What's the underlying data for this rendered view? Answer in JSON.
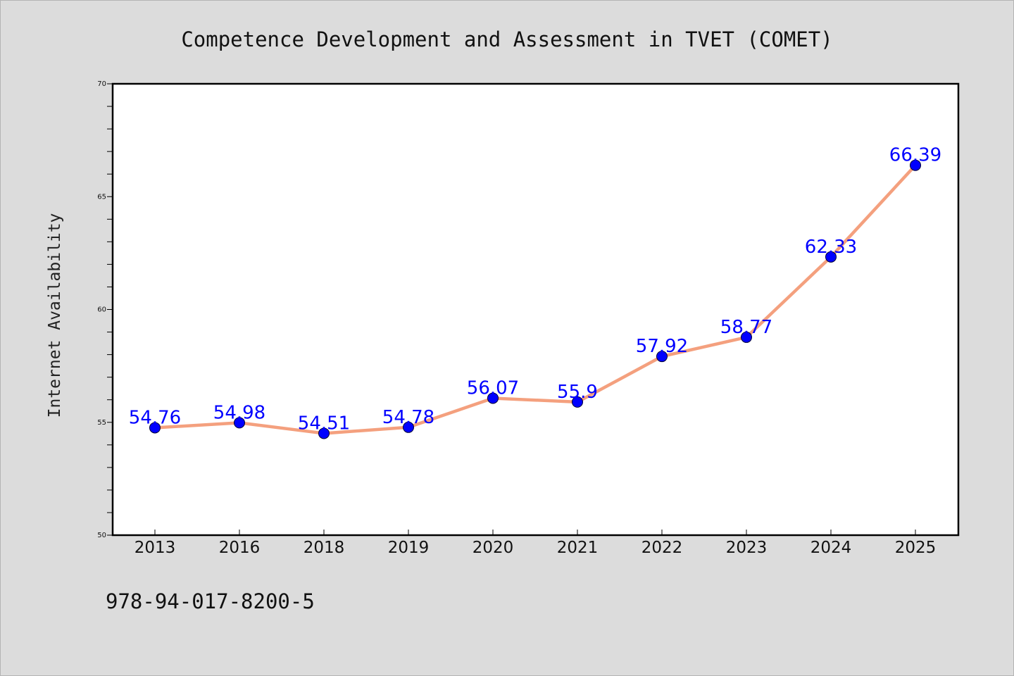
{
  "chart_data": {
    "type": "line",
    "title": "Competence Development and Assessment in TVET (COMET)",
    "ylabel": "Internet Availability",
    "xlabel": "",
    "categories": [
      "2013",
      "2016",
      "2018",
      "2019",
      "2020",
      "2021",
      "2022",
      "2023",
      "2024",
      "2025"
    ],
    "values": [
      54.76,
      54.98,
      54.51,
      54.78,
      56.07,
      55.9,
      57.92,
      58.77,
      62.33,
      66.39
    ],
    "data_labels": [
      "54.76",
      "54.98",
      "54.51",
      "54.78",
      "56.07",
      "55.9",
      "57.92",
      "58.77",
      "62.33",
      "66.39"
    ],
    "ylim": [
      50,
      70
    ],
    "y_ticks": [
      "50",
      "55",
      "60",
      "65",
      "70"
    ],
    "grid": false,
    "legend": "none",
    "line_color": "#f4a07e",
    "marker_color": "#0000ff",
    "label_color": "#0000ff"
  },
  "footer_text": "978-94-017-8200-5"
}
